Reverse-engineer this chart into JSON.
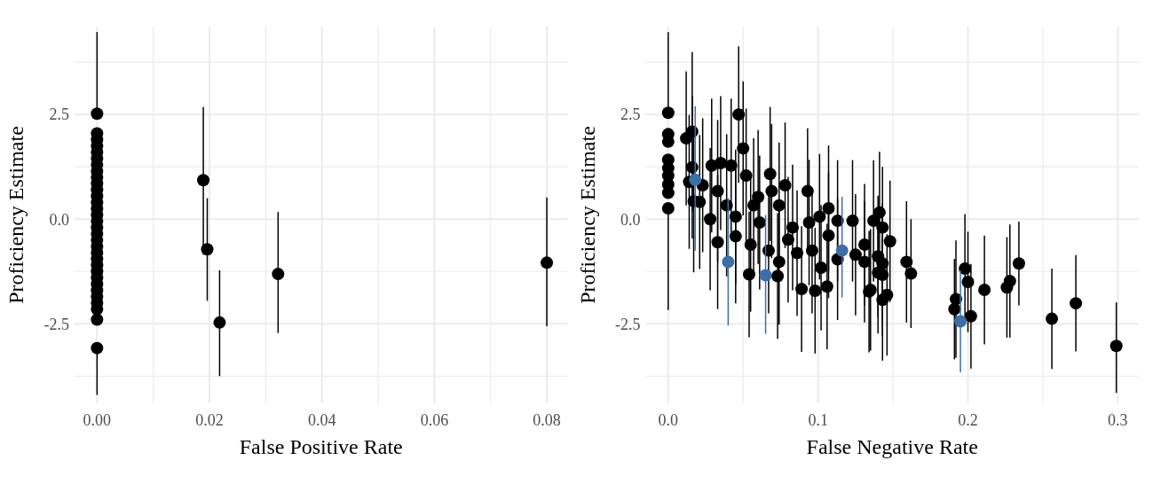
{
  "chart_data": [
    {
      "type": "scatter",
      "xlabel": "False Positive Rate",
      "ylabel": "Proficiency Estimate",
      "marker": "circle",
      "grid": true,
      "xlim": [
        -0.004,
        0.0837
      ],
      "ylim": [
        -4.4,
        4.6
      ],
      "yticks": [
        {
          "value": -3.75,
          "label": null
        },
        {
          "value": -2.5,
          "label": "-2.5"
        },
        {
          "value": -1.25,
          "label": null
        },
        {
          "value": 0,
          "label": "0.0"
        },
        {
          "value": 1.25,
          "label": null
        },
        {
          "value": 2.5,
          "label": "2.5"
        },
        {
          "value": 3.75,
          "label": null
        }
      ],
      "xticks": [
        {
          "value": 0,
          "label": "0.00"
        },
        {
          "value": 0.01,
          "label": null
        },
        {
          "value": 0.02,
          "label": "0.02"
        },
        {
          "value": 0.03,
          "label": null
        },
        {
          "value": 0.04,
          "label": "0.04"
        },
        {
          "value": 0.05,
          "label": null
        },
        {
          "value": 0.06,
          "label": "0.06"
        },
        {
          "value": 0.07,
          "label": null
        },
        {
          "value": 0.08,
          "label": "0.08"
        }
      ],
      "series": [
        {
          "color": "#000000",
          "x": [
            0,
            0,
            0,
            0,
            0,
            0,
            0,
            0,
            0,
            0,
            0,
            0,
            0,
            0,
            0,
            0,
            0,
            0,
            0,
            0,
            0,
            0,
            0,
            0,
            0,
            0,
            0,
            0,
            0,
            0,
            0,
            0,
            0.0189,
            0.0196,
            0.0218,
            0.0322,
            0.08
          ],
          "values": [
            2.52,
            2.05,
            1.9,
            1.75,
            1.6,
            1.45,
            1.3,
            1.15,
            1.0,
            0.85,
            0.7,
            0.55,
            0.4,
            0.25,
            0.1,
            -0.05,
            -0.2,
            -0.35,
            -0.5,
            -0.65,
            -0.8,
            -0.95,
            -1.1,
            -1.25,
            -1.4,
            -1.55,
            -1.7,
            -1.85,
            -2.0,
            -2.15,
            -2.4,
            -3.08,
            0.93,
            -0.72,
            -2.47,
            -1.31,
            -1.04
          ],
          "errors": [
            [
              2.52,
              4.47
            ],
            null,
            null,
            null,
            null,
            null,
            null,
            null,
            null,
            null,
            null,
            null,
            null,
            null,
            null,
            null,
            null,
            null,
            null,
            null,
            null,
            null,
            null,
            null,
            null,
            null,
            null,
            null,
            null,
            null,
            null,
            [
              -4.2,
              -3.08
            ],
            [
              -0.85,
              2.68
            ],
            [
              -1.95,
              0.5
            ],
            [
              -3.75,
              -1.22
            ],
            [
              -2.72,
              0.17
            ],
            [
              -2.56,
              0.52
            ]
          ]
        }
      ]
    },
    {
      "type": "scatter",
      "xlabel": "False Negative Rate",
      "ylabel": "Proficiency Estimate",
      "marker": "circle",
      "grid": true,
      "xlim": [
        -0.015,
        0.314
      ],
      "ylim": [
        -4.4,
        4.6
      ],
      "xticks": [
        {
          "value": 0,
          "label": "0.0"
        },
        {
          "value": 0.05,
          "label": null
        },
        0.1,
        {
          "value": 0.15,
          "label": null
        },
        0.2,
        {
          "value": 0.25,
          "label": null
        },
        0.3
      ],
      "yticks": [
        {
          "value": -3.75,
          "label": null
        },
        -2.5,
        {
          "value": -1.25,
          "label": null
        },
        {
          "value": 0,
          "label": "0.0"
        },
        {
          "value": 1.25,
          "label": null
        },
        2.5,
        {
          "value": 3.75,
          "label": null
        }
      ],
      "series": [
        {
          "color": "#000000",
          "x": [
            0,
            0,
            0,
            0,
            0,
            0,
            0,
            0,
            0,
            0.012,
            0.016,
            0.016,
            0.014,
            0.017,
            0.021,
            0.023,
            0.029,
            0.033,
            0.028,
            0.033,
            0.035,
            0.042,
            0.039,
            0.045,
            0.047,
            0.05,
            0.052,
            0.045,
            0.054,
            0.055,
            0.057,
            0.06,
            0.061,
            0.068,
            0.069,
            0.067,
            0.073,
            0.074,
            0.074,
            0.078,
            0.08,
            0.083,
            0.086,
            0.089,
            0.093,
            0.094,
            0.096,
            0.098,
            0.101,
            0.102,
            0.107,
            0.107,
            0.106,
            0.113,
            0.113,
            0.123,
            0.125,
            0.131,
            0.134,
            0.131,
            0.137,
            0.141,
            0.143,
            0.148,
            0.14,
            0.143,
            0.14,
            0.143,
            0.135,
            0.143,
            0.146,
            0.159,
            0.162,
            0.192,
            0.191,
            0.198,
            0.2,
            0.202,
            0.211,
            0.226,
            0.228,
            0.234,
            0.256,
            0.272,
            0.299
          ],
          "values": [
            2.54,
            2.03,
            1.85,
            1.42,
            1.22,
            1.04,
            0.83,
            0.63,
            0.26,
            1.93,
            2.09,
            1.24,
            0.89,
            0.43,
            0.41,
            0.81,
            1.28,
            0.67,
            0.0,
            -0.55,
            1.34,
            1.28,
            0.33,
            0.06,
            2.5,
            1.69,
            1.04,
            -0.41,
            -1.32,
            -0.61,
            0.33,
            0.53,
            -0.08,
            1.08,
            0.67,
            -0.75,
            -1.36,
            -1.02,
            0.33,
            0.81,
            -0.49,
            -0.2,
            -0.81,
            -1.67,
            0.67,
            -0.08,
            -0.75,
            -1.71,
            0.06,
            -1.16,
            0.26,
            -0.39,
            -1.61,
            -0.04,
            -0.96,
            -0.04,
            -0.85,
            -0.61,
            -1.73,
            -1.02,
            -0.04,
            0.16,
            -0.2,
            -0.53,
            -0.89,
            -1.06,
            -1.28,
            -1.33,
            -1.69,
            -1.93,
            -1.81,
            -1.02,
            -1.3,
            -1.91,
            -2.15,
            -1.18,
            -1.5,
            -2.32,
            -1.69,
            -1.63,
            -1.48,
            -1.06,
            -2.38,
            -2.01,
            -3.03
          ],
          "errors": [
            [
              2.54,
              4.47
            ],
            null,
            null,
            null,
            null,
            null,
            null,
            null,
            [
              -2.17,
              0.26
            ],
            1.6,
            1.9,
            1.7,
            1.6,
            1.7,
            1.6,
            1.6,
            1.6,
            1.7,
            1.7,
            1.6,
            1.6,
            1.6,
            1.7,
            1.6,
            1.63,
            1.6,
            1.6,
            1.6,
            1.5,
            1.6,
            1.6,
            1.6,
            1.6,
            1.6,
            1.6,
            1.5,
            1.5,
            1.5,
            1.5,
            1.5,
            1.5,
            1.5,
            1.5,
            1.5,
            1.5,
            1.5,
            1.5,
            1.5,
            1.5,
            1.5,
            1.5,
            1.5,
            1.5,
            1.45,
            1.45,
            1.45,
            1.45,
            1.45,
            1.45,
            1.45,
            1.45,
            1.45,
            1.45,
            1.45,
            1.45,
            1.45,
            1.45,
            1.45,
            1.45,
            1.45,
            1.45,
            1.45,
            1.3,
            1.4,
            1.2,
            1.3,
            1.2,
            1.25,
            1.3,
            1.2,
            1.35,
            1.0,
            1.2,
            1.15,
            [
              -4.15,
              -1.99
            ]
          ]
        },
        {
          "color": "#3a6fa8",
          "x": [
            0.018,
            0.04,
            0.065,
            0.116,
            0.195
          ],
          "values": [
            0.94,
            -1.02,
            -1.34,
            -0.75,
            -2.44
          ],
          "errors": [
            [
              -0.75,
              2.7
            ],
            [
              -2.54,
              0.5
            ],
            [
              -2.74,
              0.1
            ],
            [
              -1.87,
              0.53
            ],
            [
              -3.66,
              -1.22
            ]
          ]
        }
      ]
    }
  ]
}
